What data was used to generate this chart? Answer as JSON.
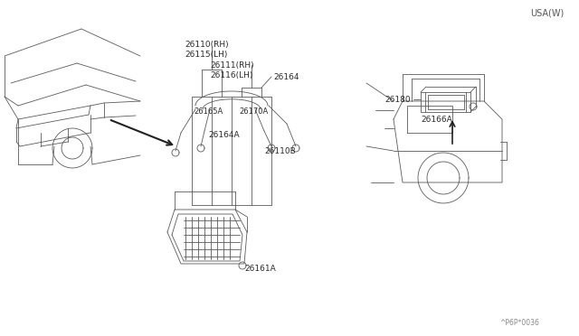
{
  "bg_color": "#ffffff",
  "line_color": "#5a5a5a",
  "text_color": "#2a2a2a",
  "fig_width": 6.4,
  "fig_height": 3.72,
  "dpi": 100,
  "usa_label": "USA(W)",
  "part_code": "^P6P*0036",
  "labels": {
    "26110RH": "26110(RH)",
    "26115LH": "26115(LH)",
    "26111RH": "26111(RH)",
    "26116LH": "26116(LH)",
    "26164": "26164",
    "26165A": "26165A",
    "26170A": "26170A",
    "26164A": "26164A",
    "26110B": "26110B",
    "26161A": "26161A",
    "26180": "26180",
    "26166A": "26166A"
  }
}
